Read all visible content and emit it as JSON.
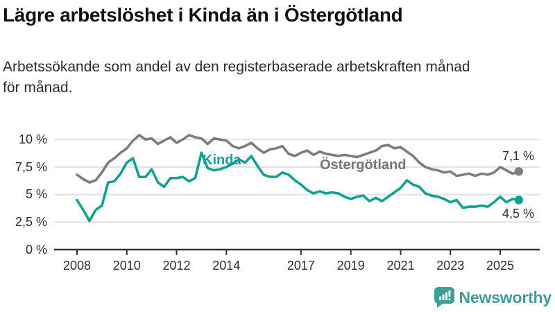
{
  "header": {
    "title": "Lägre arbetslöshet i Kinda än i Östergötland",
    "subtitle_line1": "Arbetssökande som andel av den registerbaserade arbetskraften månad",
    "subtitle_line2": "för månad."
  },
  "chart_data": {
    "type": "line",
    "unit": "%",
    "x_start": 2008,
    "x_step": 0.25,
    "x_range": [
      2008,
      2025.75
    ],
    "ylim": [
      0,
      10.7
    ],
    "grid": true,
    "legend_position": "inline-labels",
    "y_ticks": [
      {
        "value": 10,
        "label": "10 %"
      },
      {
        "value": 7.5,
        "label": "7,5 %"
      },
      {
        "value": 5,
        "label": "5 %"
      },
      {
        "value": 2.5,
        "label": "2,5 %"
      },
      {
        "value": 0,
        "label": "0 %"
      }
    ],
    "x_ticks": [
      {
        "value": 2008,
        "label": "2008"
      },
      {
        "value": 2010,
        "label": "2010"
      },
      {
        "value": 2012,
        "label": "2012"
      },
      {
        "value": 2014,
        "label": "2014"
      },
      {
        "value": 2017,
        "label": "2017"
      },
      {
        "value": 2019,
        "label": "2019"
      },
      {
        "value": 2021,
        "label": "2021"
      },
      {
        "value": 2023,
        "label": "2023"
      },
      {
        "value": 2025,
        "label": "2025"
      }
    ],
    "series": [
      {
        "id": "ostergotland",
        "name": "Östergötland",
        "color": "#7d7d81",
        "label_color": "#76767b",
        "end_label": "7,1 %",
        "end_value": 7.1,
        "values": [
          6.8,
          6.4,
          6.1,
          6.3,
          7.0,
          7.9,
          8.3,
          8.8,
          9.2,
          9.9,
          10.4,
          10.0,
          10.1,
          9.6,
          9.9,
          10.2,
          9.7,
          10.0,
          10.4,
          10.2,
          10.1,
          9.6,
          10.1,
          10.0,
          9.9,
          9.4,
          9.2,
          9.4,
          9.7,
          9.2,
          8.8,
          9.1,
          9.2,
          9.4,
          8.7,
          8.5,
          8.8,
          9.0,
          8.6,
          8.9,
          8.7,
          8.6,
          8.5,
          8.6,
          8.5,
          8.4,
          8.6,
          8.8,
          9.0,
          9.4,
          9.5,
          9.2,
          9.3,
          8.9,
          8.5,
          7.9,
          7.5,
          7.3,
          7.2,
          7.0,
          7.1,
          6.7,
          6.8,
          6.9,
          6.7,
          6.9,
          6.8,
          7.0,
          7.5,
          7.2,
          6.9,
          7.1
        ]
      },
      {
        "id": "kinda",
        "name": "Kinda",
        "color": "#12a095",
        "label_color": "#12a095",
        "end_label": "4,5 %",
        "end_value": 4.5,
        "values": [
          4.5,
          3.6,
          2.6,
          3.6,
          4.0,
          6.1,
          6.2,
          6.9,
          7.9,
          8.3,
          6.6,
          6.6,
          7.3,
          6.1,
          5.7,
          6.5,
          6.5,
          6.6,
          6.2,
          6.5,
          8.8,
          7.4,
          7.2,
          7.3,
          7.5,
          7.8,
          8.2,
          7.9,
          8.5,
          7.6,
          6.8,
          6.6,
          6.6,
          7.0,
          6.8,
          6.3,
          5.9,
          5.4,
          5.1,
          5.3,
          5.1,
          5.2,
          5.1,
          4.8,
          4.6,
          4.8,
          4.9,
          4.4,
          4.7,
          4.4,
          4.8,
          5.2,
          5.6,
          6.3,
          5.9,
          5.7,
          5.1,
          4.9,
          4.8,
          4.6,
          4.3,
          4.5,
          3.8,
          3.9,
          3.9,
          4.0,
          3.9,
          4.3,
          4.8,
          4.3,
          4.6,
          4.5
        ]
      }
    ]
  },
  "footer": {
    "brand": "Newsworthy",
    "brand_color": "#3f9e96",
    "logo_icon": "bar-chart-speech-bubble"
  }
}
